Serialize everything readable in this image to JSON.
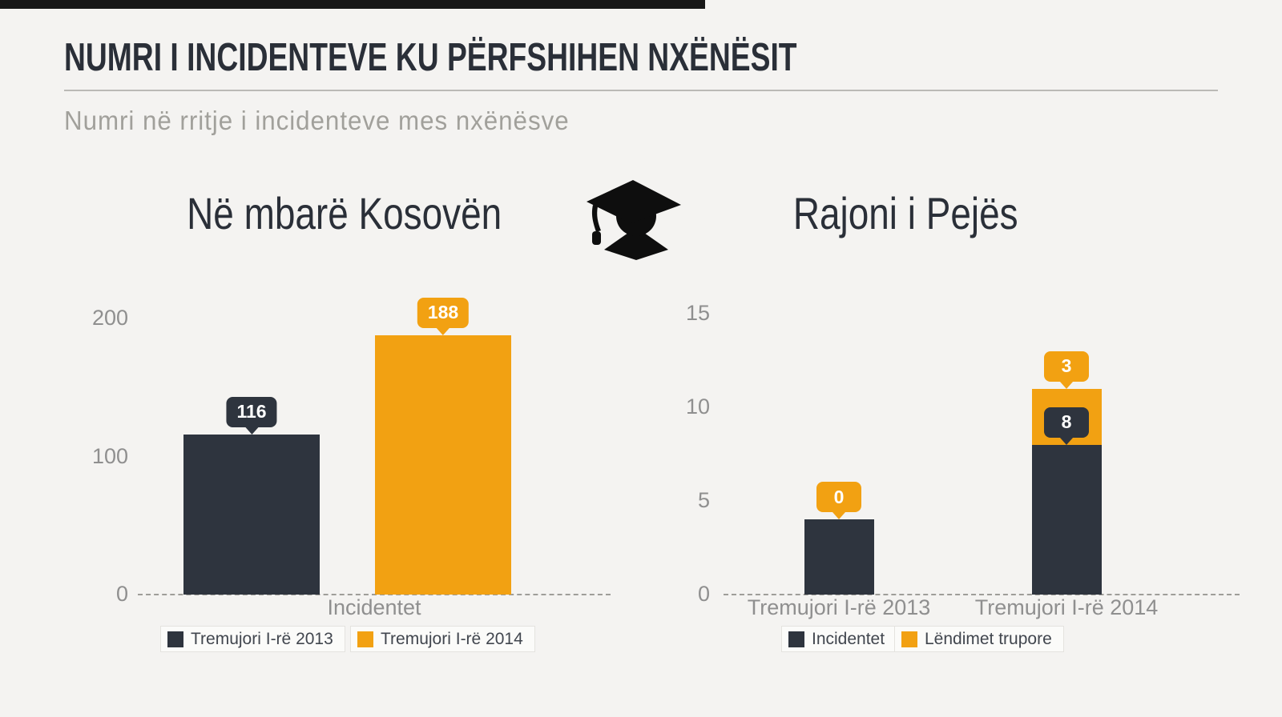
{
  "page": {
    "background": "#F4F3F1",
    "topbar_color": "#181818",
    "title": "NUMRI I INCIDENTEVE KU PËRFSHIHEN NXËNËSIT",
    "subtitle": "Numri në rritje i incidenteve mes nxënësve"
  },
  "divider_icon": "graduate-student-icon",
  "colors": {
    "dark": "#2E343E",
    "orange": "#F2A112",
    "axis_text": "#8F8F8F",
    "legend_text": "#41464E",
    "dash_line": "#9E9D99",
    "title_text": "#2A2F38",
    "subtitle_text": "#A1A09B"
  },
  "chart_data": [
    {
      "type": "bar",
      "stacked": false,
      "title": "Në mbarë Kosovën",
      "categories": [
        "Incidentet"
      ],
      "series": [
        {
          "name": "Tremujori I-rë 2013",
          "color": "#2E343E",
          "values": [
            116
          ],
          "labels": [
            "116"
          ]
        },
        {
          "name": "Tremujori I-rë 2014",
          "color": "#F2A112",
          "values": [
            188
          ],
          "labels": [
            "188"
          ]
        }
      ],
      "xlabel": "Incidentet",
      "ylabel": "",
      "ylim": [
        0,
        200
      ],
      "yticks": [
        0,
        100,
        200
      ],
      "grid": false,
      "zero_line_style": "dashed",
      "legend_position": "bottom"
    },
    {
      "type": "bar",
      "stacked": true,
      "title": "Rajoni i Pejës",
      "categories": [
        "Tremujori I-rë 2013",
        "Tremujori I-rë 2014"
      ],
      "series": [
        {
          "name": "Incidentet",
          "color": "#2E343E",
          "values": [
            4,
            8
          ],
          "labels": [
            null,
            "8"
          ]
        },
        {
          "name": "Lëndimet trupore",
          "color": "#F2A112",
          "values": [
            0,
            3
          ],
          "labels": [
            "0",
            "3"
          ]
        }
      ],
      "xlabel": "",
      "ylabel": "",
      "ylim": [
        0,
        15
      ],
      "yticks": [
        0,
        5,
        10,
        15
      ],
      "grid": false,
      "zero_line_style": "dashed",
      "legend_position": "bottom"
    }
  ]
}
